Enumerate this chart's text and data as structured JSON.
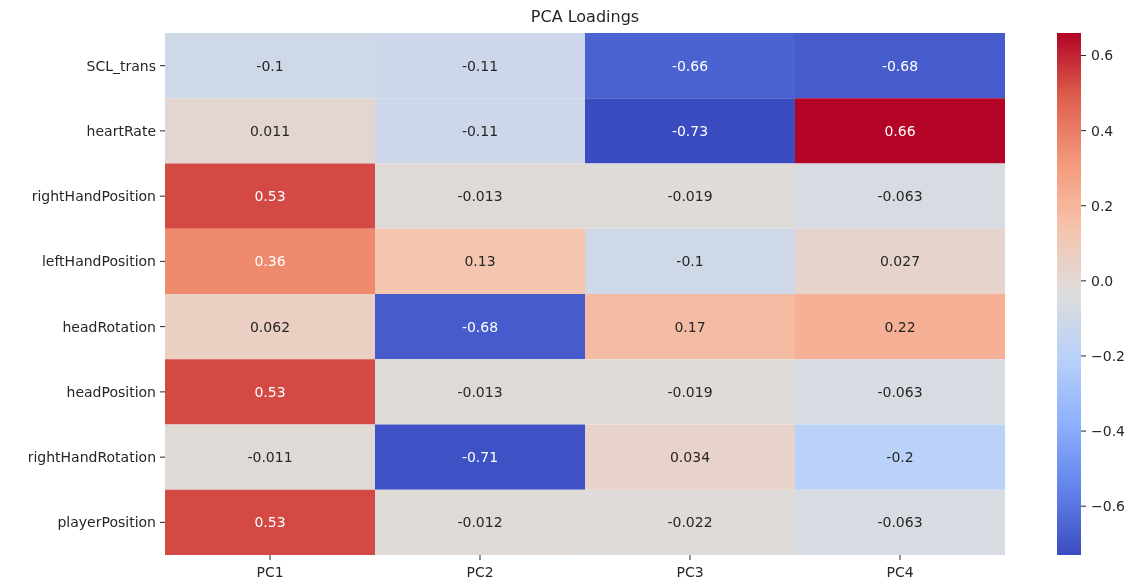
{
  "chart_data": {
    "type": "heatmap",
    "title": "PCA Loadings",
    "categories": [
      "PC1",
      "PC2",
      "PC3",
      "PC4"
    ],
    "y_categories": [
      "SCL_trans",
      "heartRate",
      "rightHandPosition",
      "leftHandPosition",
      "headRotation",
      "headPosition",
      "rightHandRotation",
      "playerPosition"
    ],
    "cells": [
      [
        -0.1,
        -0.11,
        -0.66,
        -0.68
      ],
      [
        0.011,
        -0.11,
        -0.73,
        0.66
      ],
      [
        0.53,
        -0.013,
        -0.019,
        -0.063
      ],
      [
        0.36,
        0.13,
        -0.1,
        0.027
      ],
      [
        0.062,
        -0.68,
        0.17,
        0.22
      ],
      [
        0.53,
        -0.013,
        -0.019,
        -0.063
      ],
      [
        -0.011,
        -0.71,
        0.034,
        -0.2
      ],
      [
        0.53,
        -0.012,
        -0.022,
        -0.063
      ]
    ],
    "data_labels": true,
    "clim": [
      -0.73,
      0.66
    ],
    "cticks": [
      {
        "value": -0.6,
        "label": "−0.6"
      },
      {
        "value": -0.4,
        "label": "−0.4"
      },
      {
        "value": -0.2,
        "label": "−0.2"
      },
      {
        "value": 0,
        "label": "0.0"
      },
      0.2,
      0.4,
      0.6
    ]
  }
}
